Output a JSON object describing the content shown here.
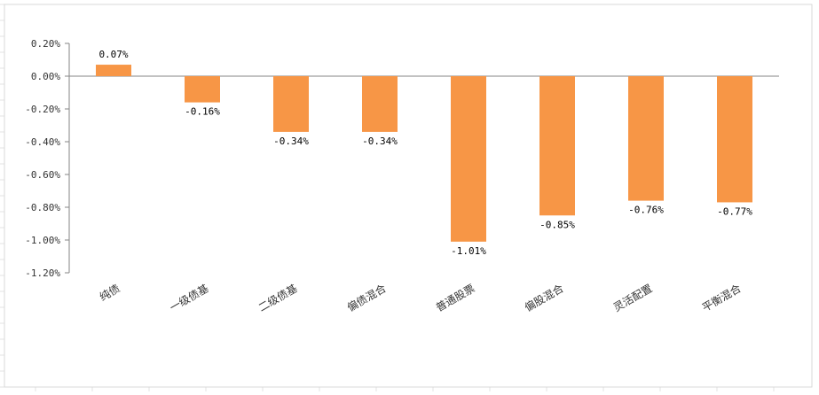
{
  "chart_data": {
    "type": "bar",
    "categories": [
      "纯债",
      "一级债基",
      "二级债基",
      "偏债混合",
      "普通股票",
      "偏股混合",
      "灵活配置",
      "平衡混合"
    ],
    "values": [
      0.07,
      -0.16,
      -0.34,
      -0.34,
      -1.01,
      -0.85,
      -0.76,
      -0.77
    ],
    "value_labels": [
      "0.07%",
      "-0.16%",
      "-0.34%",
      "-0.34%",
      "-1.01%",
      "-0.85%",
      "-0.76%",
      "-0.77%"
    ],
    "ylim": [
      -1.2,
      0.2
    ],
    "yticks": [
      0.2,
      0.0,
      -0.2,
      -0.4,
      -0.6,
      -0.8,
      -1.0,
      -1.2
    ],
    "ytick_labels": [
      "0.20%",
      "0.00%",
      "-0.20%",
      "-0.40%",
      "-0.60%",
      "-0.80%",
      "-1.00%",
      "-1.20%"
    ],
    "grid": false,
    "legend": "none",
    "bar_color": "#F79646"
  }
}
